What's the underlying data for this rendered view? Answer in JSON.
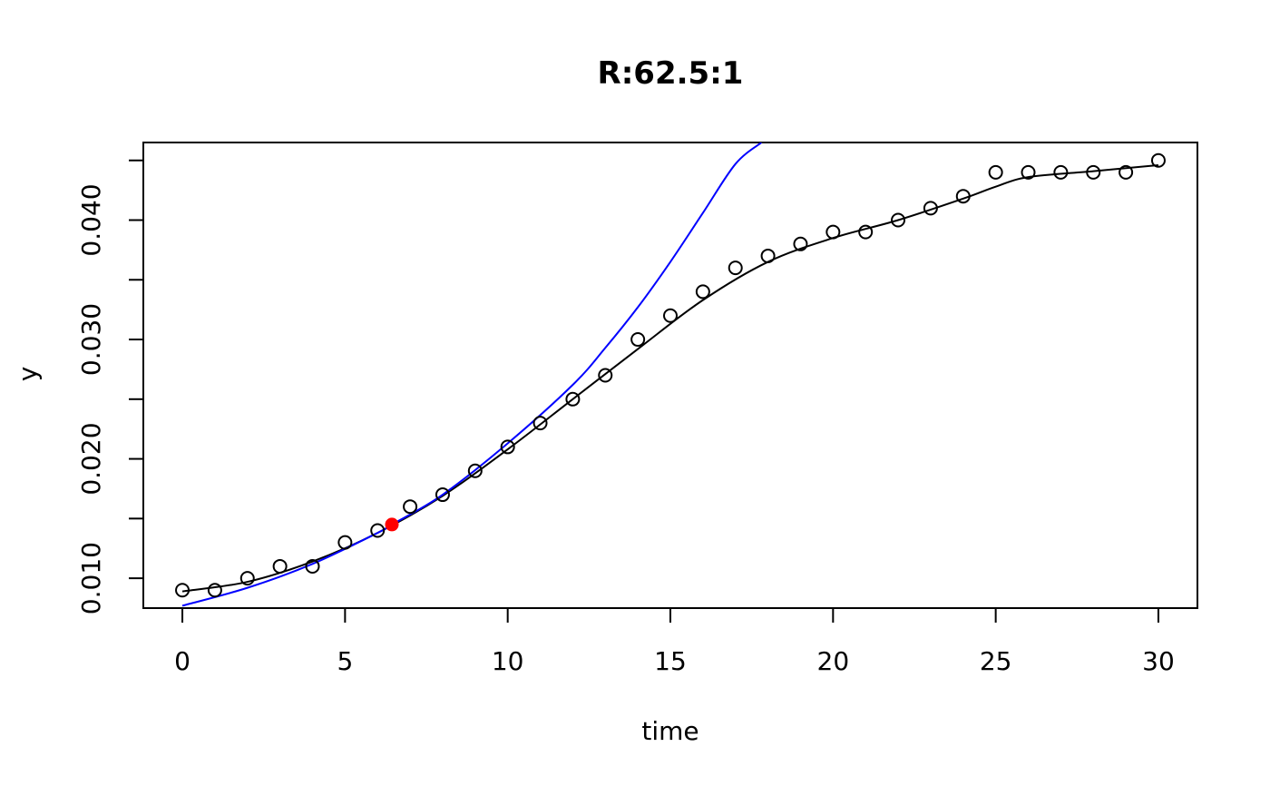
{
  "chart_data": {
    "type": "scatter",
    "title": "R:62.5:1",
    "xlabel": "time",
    "ylabel": "y",
    "xlim": [
      -1.2,
      31.2
    ],
    "ylim": [
      0.0075,
      0.0465
    ],
    "xticks": [
      0,
      5,
      10,
      15,
      20,
      25,
      30
    ],
    "xtick_labels": [
      "0",
      "5",
      "10",
      "15",
      "20",
      "25",
      "30"
    ],
    "yticks": [
      0.01,
      0.015,
      0.02,
      0.025,
      0.03,
      0.035,
      0.04,
      0.045
    ],
    "ytick_labels": [
      "0.010",
      "",
      "0.020",
      "",
      "0.030",
      "",
      "0.040",
      ""
    ],
    "grid": false,
    "series": [
      {
        "kind": "points",
        "color": "#000000",
        "x": [
          0,
          1,
          2,
          3,
          4,
          5,
          6,
          7,
          8,
          9,
          10,
          11,
          12,
          13,
          14,
          15,
          16,
          17,
          18,
          19,
          20,
          21,
          22,
          23,
          24,
          25,
          26,
          27,
          28,
          29,
          30
        ],
        "y": [
          0.009,
          0.009,
          0.01,
          0.011,
          0.011,
          0.013,
          0.014,
          0.016,
          0.017,
          0.019,
          0.021,
          0.023,
          0.025,
          0.027,
          0.03,
          0.032,
          0.034,
          0.036,
          0.037,
          0.038,
          0.039,
          0.039,
          0.04,
          0.041,
          0.042,
          0.044,
          0.044,
          0.044,
          0.044,
          0.044,
          0.045
        ]
      },
      {
        "kind": "smooth-line",
        "color": "#000000",
        "x": [
          0,
          2,
          4,
          6,
          8,
          10,
          12,
          14,
          16,
          18,
          20,
          22,
          24,
          25,
          26,
          28,
          30
        ],
        "y": [
          0.0089,
          0.0097,
          0.0114,
          0.0138,
          0.0169,
          0.0208,
          0.025,
          0.0292,
          0.0333,
          0.0365,
          0.0385,
          0.04,
          0.0418,
          0.0428,
          0.0436,
          0.0441,
          0.0446
        ]
      },
      {
        "kind": "tangent-curve",
        "color": "#0000ff",
        "x": [
          0,
          2,
          4,
          6,
          6.44,
          8,
          10,
          12,
          13,
          14,
          15,
          16,
          17,
          17.8
        ],
        "y": [
          0.0077,
          0.0092,
          0.0112,
          0.0138,
          0.0145,
          0.017,
          0.0213,
          0.0262,
          0.0293,
          0.0327,
          0.0365,
          0.0406,
          0.0447,
          0.0465
        ]
      },
      {
        "kind": "highlight-point",
        "color": "#ff0000",
        "x": [
          6.44
        ],
        "y": [
          0.0145
        ]
      }
    ]
  }
}
